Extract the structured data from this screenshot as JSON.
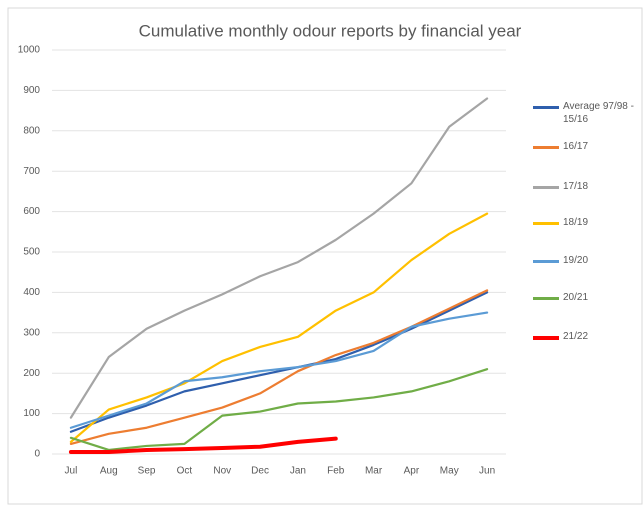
{
  "chart_data": {
    "type": "line",
    "title": "Cumulative monthly odour reports by financial year",
    "categories": [
      "Jul",
      "Aug",
      "Sep",
      "Oct",
      "Nov",
      "Dec",
      "Jan",
      "Feb",
      "Mar",
      "Apr",
      "May",
      "Jun"
    ],
    "ylim": [
      0,
      1000
    ],
    "yticks": [
      0,
      100,
      200,
      300,
      400,
      500,
      600,
      700,
      800,
      900,
      1000
    ],
    "grid": true,
    "series": [
      {
        "name": "Average 97/98 - 15/16",
        "color": "#2f5fad",
        "values": [
          55,
          90,
          120,
          155,
          175,
          195,
          215,
          235,
          270,
          310,
          355,
          400
        ]
      },
      {
        "name": "16/17",
        "color": "#ed7d31",
        "values": [
          25,
          50,
          65,
          90,
          115,
          150,
          205,
          245,
          275,
          315,
          360,
          405
        ]
      },
      {
        "name": "17/18",
        "color": "#a5a5a5",
        "values": [
          90,
          240,
          310,
          355,
          395,
          440,
          475,
          530,
          595,
          670,
          810,
          880
        ]
      },
      {
        "name": "18/19",
        "color": "#ffc000",
        "values": [
          30,
          110,
          140,
          175,
          230,
          265,
          290,
          355,
          400,
          480,
          545,
          595
        ]
      },
      {
        "name": "19/20",
        "color": "#5b9bd5",
        "values": [
          65,
          95,
          125,
          180,
          190,
          205,
          215,
          230,
          255,
          315,
          335,
          350
        ]
      },
      {
        "name": "20/21",
        "color": "#70ad47",
        "values": [
          40,
          10,
          20,
          25,
          95,
          105,
          125,
          130,
          140,
          155,
          180,
          210
        ]
      },
      {
        "name": "21/22",
        "color": "#ff0000",
        "values": [
          5,
          5,
          10,
          12,
          15,
          18,
          30,
          38,
          null,
          null,
          null,
          null
        ]
      }
    ]
  }
}
